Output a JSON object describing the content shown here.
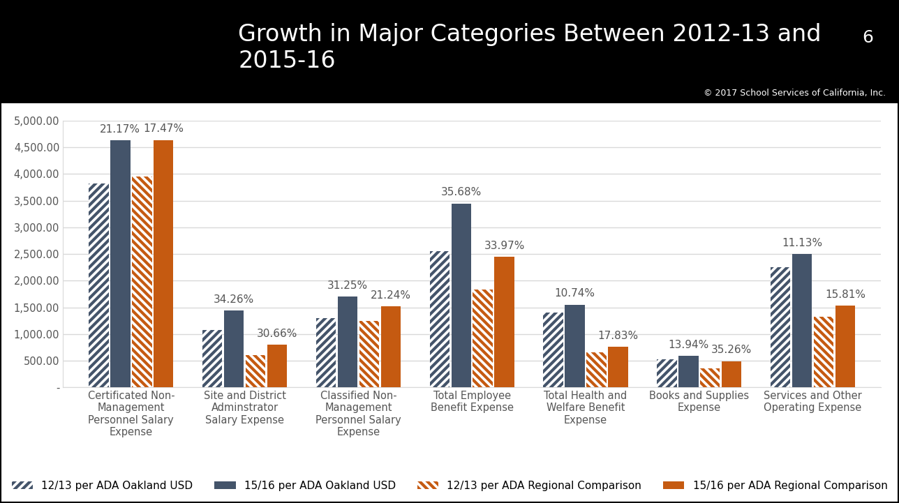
{
  "header": {
    "title": "Growth in Major Categories Between 2012-13 and 2015-16",
    "page": "6",
    "copyright": "© 2017 School Services of California, Inc."
  },
  "chart_data": {
    "type": "bar",
    "categories": [
      "Certificated Non-Management Personnel Salary Expense",
      "Site and District Adminstrator Salary Expense",
      "Classified Non-Management Personnel Salary Expense",
      "Total Employee Benefit Expense",
      "Total Health and Welfare Benefit Expense",
      "Books and Supplies Expense",
      "Services and Other Operating Expense"
    ],
    "series": [
      {
        "name": "12/13 per ADA Oakland USD",
        "color": "#44546a",
        "values": [
          3820,
          1070,
          1300,
          2550,
          1400,
          520,
          2250
        ]
      },
      {
        "name": "15/16 per ADA Oakland USD",
        "color": "#44546a",
        "values": [
          4630,
          1440,
          1700,
          3450,
          1550,
          590,
          2500
        ],
        "growth_labels": [
          "21.17%",
          "34.26%",
          "31.25%",
          "35.68%",
          "10.74%",
          "13.94%",
          "11.13%"
        ]
      },
      {
        "name": "12/13 per ADA Regional Comparison",
        "color": "#c55a11",
        "values": [
          3950,
          610,
          1250,
          1830,
          650,
          360,
          1320
        ]
      },
      {
        "name": "15/16 per ADA Regional Comparison",
        "color": "#c55a11",
        "values": [
          4640,
          800,
          1520,
          2450,
          760,
          490,
          1530
        ],
        "growth_labels": [
          "17.47%",
          "30.66%",
          "21.24%",
          "33.97%",
          "17.83%",
          "35.26%",
          "15.81%"
        ]
      }
    ],
    "ylim": [
      0,
      5000
    ],
    "yticks": [
      {
        "value": 0,
        "label": "-"
      },
      {
        "value": 500,
        "label": "500.00"
      },
      {
        "value": 1000,
        "label": "1,000.00"
      },
      {
        "value": 1500,
        "label": "1,500.00"
      },
      {
        "value": 2000,
        "label": "2,000.00"
      },
      {
        "value": 2500,
        "label": "2,500.00"
      },
      {
        "value": 3000,
        "label": "3,000.00"
      },
      {
        "value": 3500,
        "label": "3,500.00"
      },
      {
        "value": 4000,
        "label": "4,000.00"
      },
      {
        "value": 4500,
        "label": "4,500.00"
      },
      {
        "value": 5000,
        "label": "5,000.00"
      }
    ],
    "grid": true,
    "legend": "lower center"
  }
}
